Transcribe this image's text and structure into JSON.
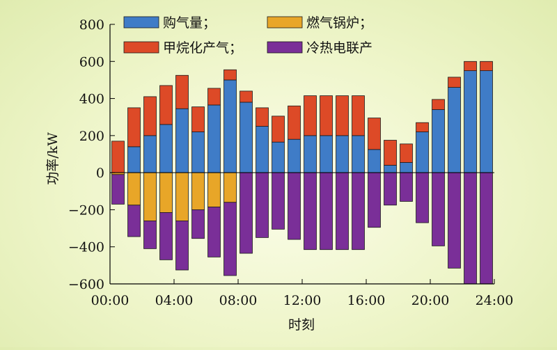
{
  "chart_data": {
    "type": "bar",
    "stacked": true,
    "xlabel": "时刻",
    "ylabel": "功率/kW",
    "ylim": [
      -600,
      800
    ],
    "yticks": [
      -600,
      -400,
      -200,
      0,
      200,
      400,
      600,
      800
    ],
    "xlim": [
      0,
      24
    ],
    "xticks": [
      {
        "value": 0,
        "label": "00:00"
      },
      {
        "value": 4,
        "label": "04:00"
      },
      {
        "value": 8,
        "label": "08:00"
      },
      {
        "value": 12,
        "label": "12:00"
      },
      {
        "value": 16,
        "label": "16:00"
      },
      {
        "value": 20,
        "label": "20:00"
      },
      {
        "value": 24,
        "label": "24:00"
      }
    ],
    "grid": false,
    "legend_position": "top",
    "hours": [
      1,
      2,
      3,
      4,
      5,
      6,
      7,
      8,
      9,
      10,
      11,
      12,
      13,
      14,
      15,
      16,
      17,
      18,
      19,
      20,
      21,
      22,
      23,
      24
    ],
    "series": [
      {
        "name": "购气量；",
        "color": "#3f7cc7",
        "values": [
          0,
          140,
          200,
          260,
          345,
          220,
          365,
          500,
          380,
          250,
          165,
          180,
          200,
          200,
          200,
          200,
          125,
          40,
          55,
          220,
          340,
          460,
          550,
          550
        ]
      },
      {
        "name": "甲烷化产气；",
        "color": "#dd4a27",
        "values": [
          170,
          210,
          210,
          210,
          180,
          135,
          90,
          55,
          60,
          100,
          140,
          180,
          215,
          215,
          215,
          215,
          170,
          135,
          100,
          50,
          55,
          55,
          50,
          50
        ]
      },
      {
        "name": "燃气锅炉；",
        "color": "#e8a628",
        "values": [
          -10,
          -175,
          -260,
          -215,
          -260,
          -200,
          -185,
          -160,
          0,
          0,
          0,
          0,
          0,
          0,
          0,
          0,
          0,
          0,
          0,
          0,
          0,
          0,
          0,
          0
        ]
      },
      {
        "name": "冷热电联产",
        "color": "#7a2f98",
        "values": [
          -160,
          -170,
          -150,
          -255,
          -265,
          -155,
          -270,
          -395,
          -435,
          -350,
          -305,
          -360,
          -415,
          -415,
          -415,
          -415,
          -295,
          -175,
          -155,
          -270,
          -395,
          -515,
          -600,
          -600
        ]
      }
    ]
  }
}
